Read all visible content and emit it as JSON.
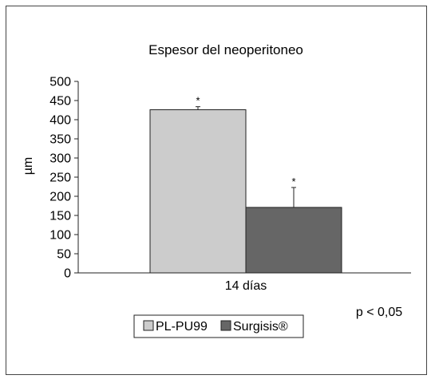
{
  "chart_data": {
    "type": "bar",
    "title": "Espesor del neoperitoneo",
    "ylabel": "µm",
    "xlabel": "",
    "categories": [
      "14 días"
    ],
    "series": [
      {
        "name": "PL-PU99",
        "values": [
          426
        ],
        "error": [
          8
        ],
        "color": "#cccccc",
        "significance": "*"
      },
      {
        "name": "Surgisis®",
        "values": [
          171
        ],
        "error": [
          52
        ],
        "color": "#666666",
        "significance": "*"
      }
    ],
    "ylim": [
      0,
      500
    ],
    "yticks": [
      "0",
      "50",
      "100",
      "150",
      "200",
      "250",
      "300",
      "350",
      "400",
      "450",
      "500"
    ],
    "grid": false,
    "legend": "bottom",
    "annotation": "p < 0,05"
  }
}
